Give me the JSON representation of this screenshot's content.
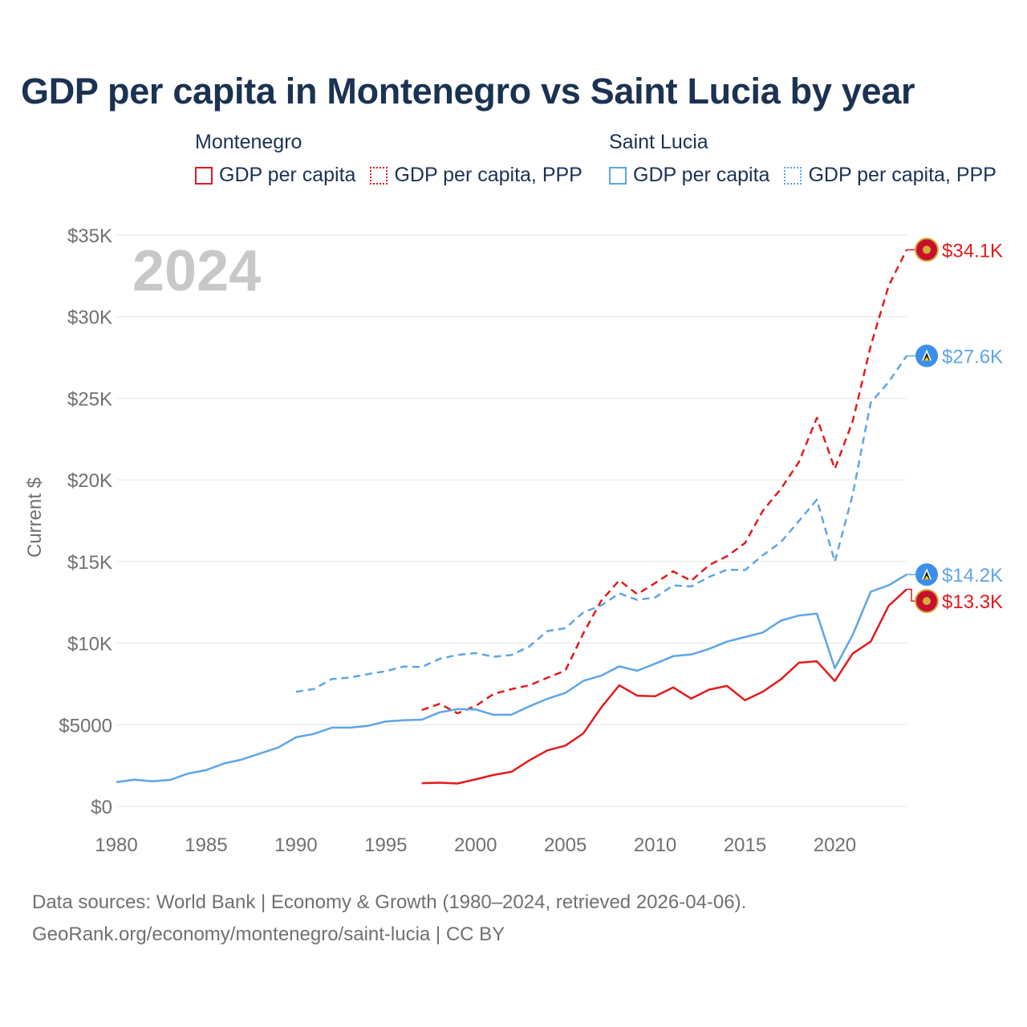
{
  "title": "GDP per capita in Montenegro vs Saint Lucia by year",
  "legend": {
    "groups": [
      {
        "name": "Montenegro",
        "items": [
          {
            "label": "GDP per capita",
            "style": "solid"
          },
          {
            "label": "GDP per capita, PPP",
            "style": "dotted"
          }
        ],
        "color": "#e31a1c"
      },
      {
        "name": "Saint Lucia",
        "items": [
          {
            "label": "GDP per capita",
            "style": "solid"
          },
          {
            "label": "GDP per capita, PPP",
            "style": "dotted"
          }
        ],
        "color": "#5ea5e6"
      }
    ]
  },
  "colors": {
    "montenegro": "#e31a1c",
    "saint_lucia": "#5ea5e6",
    "title": "#1b3252",
    "axis_text": "#707070",
    "grid": "#e6e6e6",
    "year_watermark": "#c8c8c8"
  },
  "chart_data": {
    "type": "line",
    "title": "GDP per capita in Montenegro vs Saint Lucia by year",
    "xlabel": "",
    "ylabel": "Current $",
    "xlim": [
      1980,
      2024
    ],
    "ylim": [
      0,
      35000
    ],
    "x_ticks": [
      "1980",
      "1985",
      "1990",
      "1995",
      "2000",
      "2005",
      "2010",
      "2015",
      "2020"
    ],
    "x_tick_values": [
      1980,
      1985,
      1990,
      1995,
      2000,
      2005,
      2010,
      2015,
      2020
    ],
    "y_ticks": [
      "$0",
      "$5000",
      "$10K",
      "$15K",
      "$20K",
      "$25K",
      "$30K",
      "$35K"
    ],
    "y_tick_values": [
      0,
      5000,
      10000,
      15000,
      20000,
      25000,
      30000,
      35000
    ],
    "year_label": "2024",
    "series": [
      {
        "name": "Montenegro GDP per capita",
        "country": "Montenegro",
        "dash": "solid",
        "color": "#e31a1c",
        "x": [
          1997,
          1998,
          1999,
          2000,
          2001,
          2002,
          2003,
          2004,
          2005,
          2006,
          2007,
          2008,
          2009,
          2010,
          2011,
          2012,
          2013,
          2014,
          2015,
          2016,
          2017,
          2018,
          2019,
          2020,
          2021,
          2022,
          2023,
          2024
        ],
        "values": [
          1420,
          1450,
          1400,
          1650,
          1920,
          2120,
          2820,
          3430,
          3720,
          4470,
          6060,
          7420,
          6780,
          6750,
          7290,
          6600,
          7150,
          7380,
          6500,
          7030,
          7780,
          8800,
          8890,
          7680,
          9370,
          10090,
          12290,
          13300
        ],
        "end_label": "$13.3K"
      },
      {
        "name": "Montenegro GDP per capita, PPP",
        "country": "Montenegro",
        "dash": "dashed",
        "color": "#e31a1c",
        "x": [
          1997,
          1998,
          1999,
          2000,
          2001,
          2002,
          2003,
          2004,
          2005,
          2006,
          2007,
          2008,
          2009,
          2010,
          2011,
          2012,
          2013,
          2014,
          2015,
          2016,
          2017,
          2018,
          2019,
          2020,
          2021,
          2022,
          2023,
          2024
        ],
        "values": [
          5900,
          6280,
          5700,
          6150,
          6880,
          7180,
          7420,
          7880,
          8320,
          10600,
          12600,
          13850,
          13000,
          13680,
          14400,
          13820,
          14780,
          15320,
          16130,
          18120,
          19450,
          21100,
          23800,
          20680,
          23600,
          28200,
          31900,
          34100
        ],
        "end_label": "$34.1K"
      },
      {
        "name": "Saint Lucia GDP per capita",
        "country": "Saint Lucia",
        "dash": "solid",
        "color": "#5ea5e6",
        "x": [
          1980,
          1981,
          1982,
          1983,
          1984,
          1985,
          1986,
          1987,
          1988,
          1989,
          1990,
          1991,
          1992,
          1993,
          1994,
          1995,
          1996,
          1997,
          1998,
          1999,
          2000,
          2001,
          2002,
          2003,
          2004,
          2005,
          2006,
          2007,
          2008,
          2009,
          2010,
          2011,
          2012,
          2013,
          2014,
          2015,
          2016,
          2017,
          2018,
          2019,
          2020,
          2021,
          2022,
          2023,
          2024
        ],
        "values": [
          1480,
          1630,
          1540,
          1620,
          2010,
          2220,
          2630,
          2870,
          3240,
          3600,
          4230,
          4440,
          4820,
          4820,
          4930,
          5200,
          5280,
          5310,
          5760,
          5960,
          5940,
          5610,
          5620,
          6130,
          6590,
          6950,
          7690,
          8010,
          8580,
          8310,
          8740,
          9200,
          9300,
          9650,
          10090,
          10370,
          10650,
          11380,
          11690,
          11810,
          8460,
          10510,
          13150,
          13550,
          14200
        ],
        "end_label": "$14.2K"
      },
      {
        "name": "Saint Lucia GDP per capita, PPP",
        "country": "Saint Lucia",
        "dash": "dashed",
        "color": "#5ea5e6",
        "x": [
          1990,
          1991,
          1992,
          1993,
          1994,
          1995,
          1996,
          1997,
          1998,
          1999,
          2000,
          2001,
          2002,
          2003,
          2004,
          2005,
          2006,
          2007,
          2008,
          2009,
          2010,
          2011,
          2012,
          2013,
          2014,
          2015,
          2016,
          2017,
          2018,
          2019,
          2020,
          2021,
          2022,
          2023,
          2024
        ],
        "values": [
          7020,
          7190,
          7800,
          7890,
          8100,
          8280,
          8570,
          8540,
          9040,
          9280,
          9390,
          9170,
          9270,
          9800,
          10740,
          10920,
          11880,
          12310,
          13050,
          12650,
          12800,
          13540,
          13470,
          14060,
          14500,
          14470,
          15390,
          16190,
          17480,
          18790,
          14990,
          19110,
          24720,
          26000,
          27600
        ],
        "end_label": "$27.6K"
      }
    ]
  },
  "footer": {
    "line1": "Data sources: World Bank | Economy & Growth (1980–2024, retrieved 2026-04-06).",
    "line2": "GeoRank.org/economy/montenegro/saint-lucia | CC BY"
  }
}
